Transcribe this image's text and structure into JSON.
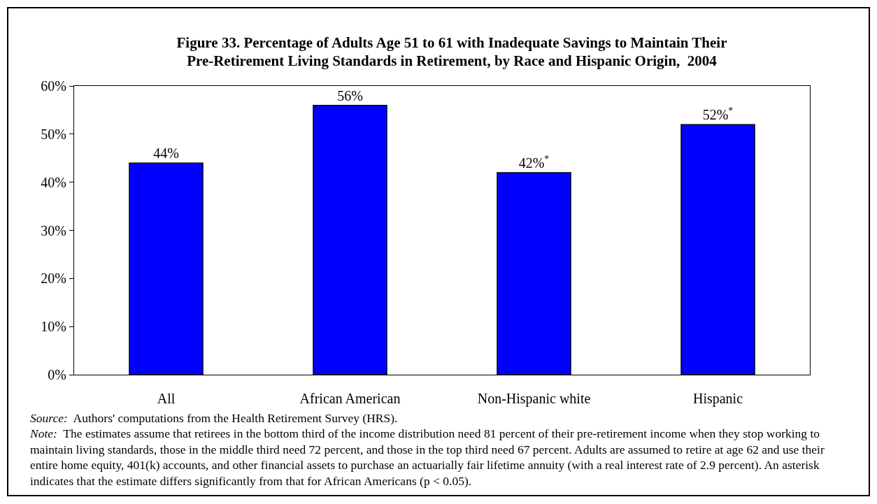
{
  "chart_data": {
    "type": "bar",
    "title": "Figure 33. Percentage of Adults Age 51 to 61 with Inadequate Savings to Maintain Their Pre-Retirement Living Standards in Retirement, by Race and Hispanic Origin,  2004",
    "categories": [
      "All",
      "African American",
      "Non-Hispanic white",
      "Hispanic"
    ],
    "values": [
      44,
      56,
      42,
      52
    ],
    "value_labels": [
      "44%",
      "56%",
      "42%$^{*}$",
      "52%$^{*}$"
    ],
    "color": "#0000ff",
    "ylim": [
      0,
      60
    ],
    "yticks": [
      {
        "value": 0,
        "label": "0%"
      },
      {
        "value": 10,
        "label": "10%"
      },
      {
        "value": 20,
        "label": "20%"
      },
      {
        "value": 30,
        "label": "30%"
      },
      {
        "value": 40,
        "label": "40%"
      },
      {
        "value": 50,
        "label": "50%"
      },
      {
        "value": 60,
        "label": "60%"
      }
    ],
    "grid": false,
    "annotations": [
      "Source:  Authors' computations from the Health Retirement Survey (HRS).",
      "Note:  The estimates assume that retirees in the bottom third of the income distribution need 81 percent of their pre-retirement income when they stop working to maintain living standards, those in the middle third need 72 percent, and those in the top third need 67 percent. Adults are assumed to retire at age 62 and use their entire home equity, 401(k) accounts, and other financial assets to purchase an actuarially fair lifetime annuity (with a real interest rate of 2.9 percent). An asterisk indicates that the estimate differs significantly from that for African Americans (p < 0.05)."
    ]
  }
}
